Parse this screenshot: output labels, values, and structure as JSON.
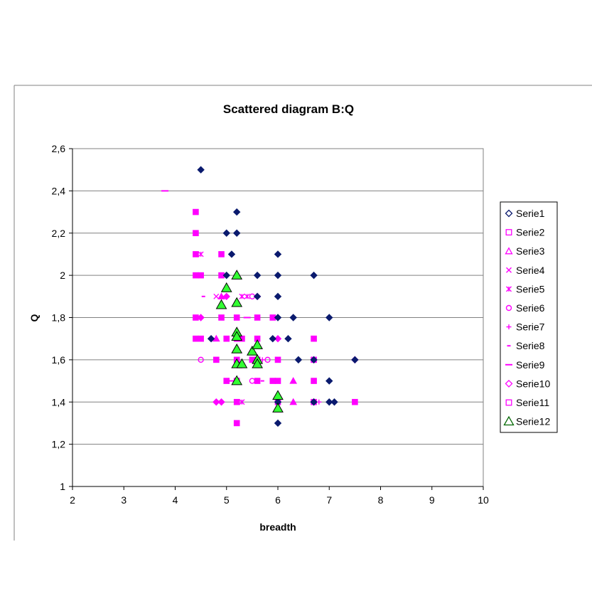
{
  "chart_data": {
    "type": "scatter",
    "title": "Scattered diagram B:Q",
    "xlabel": "breadth",
    "ylabel": "Q",
    "xlim": [
      2,
      10
    ],
    "ylim": [
      1,
      2.6
    ],
    "x_ticks": [
      "2",
      "3",
      "4",
      "5",
      "6",
      "7",
      "8",
      "9",
      "10"
    ],
    "y_ticks": [
      "1",
      "1,2",
      "1,4",
      "1,6",
      "1,8",
      "2",
      "2,2",
      "2,4",
      "2,6"
    ],
    "grid": "horizontal",
    "legend_position": "right",
    "series": [
      {
        "name": "Serie1",
        "marker": "diamond-filled",
        "color": "#0a1a6e",
        "points": [
          [
            4.5,
            2.5
          ],
          [
            5.2,
            2.3
          ],
          [
            5.0,
            2.2
          ],
          [
            5.2,
            2.2
          ],
          [
            5.1,
            2.1
          ],
          [
            6.0,
            2.1
          ],
          [
            5.0,
            2.0
          ],
          [
            5.6,
            2.0
          ],
          [
            6.0,
            2.0
          ],
          [
            6.7,
            2.0
          ],
          [
            5.6,
            1.9
          ],
          [
            6.0,
            1.9
          ],
          [
            6.0,
            1.8
          ],
          [
            6.3,
            1.8
          ],
          [
            7.0,
            1.8
          ],
          [
            4.7,
            1.7
          ],
          [
            5.9,
            1.7
          ],
          [
            6.2,
            1.7
          ],
          [
            6.4,
            1.6
          ],
          [
            6.7,
            1.6
          ],
          [
            7.5,
            1.6
          ],
          [
            7.0,
            1.5
          ],
          [
            6.0,
            1.4
          ],
          [
            6.7,
            1.4
          ],
          [
            7.0,
            1.4
          ],
          [
            7.1,
            1.4
          ],
          [
            6.0,
            1.3
          ]
        ]
      },
      {
        "name": "Serie2",
        "marker": "square",
        "color": "#ff00ff",
        "points": [
          [
            4.4,
            2.3
          ],
          [
            4.4,
            2.2
          ],
          [
            4.4,
            2.1
          ],
          [
            4.9,
            2.1
          ],
          [
            4.4,
            2.0
          ],
          [
            4.5,
            2.0
          ],
          [
            4.9,
            2.0
          ],
          [
            4.4,
            1.8
          ],
          [
            4.9,
            1.8
          ],
          [
            5.2,
            1.8
          ],
          [
            5.6,
            1.8
          ],
          [
            5.9,
            1.8
          ],
          [
            4.5,
            1.7
          ],
          [
            5.0,
            1.7
          ],
          [
            5.2,
            1.7
          ],
          [
            5.6,
            1.7
          ],
          [
            6.7,
            1.7
          ],
          [
            4.8,
            1.6
          ],
          [
            5.2,
            1.6
          ],
          [
            5.6,
            1.6
          ],
          [
            6.0,
            1.6
          ],
          [
            6.7,
            1.6
          ],
          [
            5.0,
            1.5
          ],
          [
            5.2,
            1.5
          ],
          [
            5.6,
            1.5
          ],
          [
            5.9,
            1.5
          ],
          [
            6.0,
            1.5
          ],
          [
            6.7,
            1.5
          ],
          [
            5.2,
            1.4
          ],
          [
            6.0,
            1.4
          ],
          [
            6.7,
            1.4
          ],
          [
            7.5,
            1.4
          ],
          [
            5.2,
            1.3
          ]
        ]
      },
      {
        "name": "Serie3",
        "marker": "triangle",
        "color": "#ff00ff",
        "points": [
          [
            4.9,
            1.9
          ],
          [
            4.8,
            1.7
          ],
          [
            6.3,
            1.5
          ],
          [
            6.3,
            1.4
          ]
        ]
      },
      {
        "name": "Serie4",
        "marker": "x",
        "color": "#ff00ff",
        "points": [
          [
            4.8,
            1.9
          ],
          [
            5.3,
            1.9
          ]
        ]
      },
      {
        "name": "Serie5",
        "marker": "star",
        "color": "#ff00ff",
        "points": [
          [
            4.5,
            2.1
          ],
          [
            5.3,
            1.9
          ],
          [
            5.4,
            1.9
          ],
          [
            5.2,
            1.3
          ],
          [
            5.3,
            1.4
          ]
        ]
      },
      {
        "name": "Serie6",
        "marker": "circle",
        "color": "#ff00ff",
        "points": [
          [
            4.5,
            1.6
          ],
          [
            5.5,
            1.9
          ],
          [
            5.8,
            1.6
          ],
          [
            5.5,
            1.5
          ]
        ]
      },
      {
        "name": "Serie7",
        "marker": "plus",
        "color": "#ff00ff",
        "points": [
          [
            5.0,
            1.5
          ],
          [
            5.7,
            1.6
          ],
          [
            6.8,
            1.4
          ]
        ]
      },
      {
        "name": "Serie8",
        "marker": "short-dash",
        "color": "#ff00ff",
        "points": [
          [
            4.55,
            1.9
          ],
          [
            5.7,
            1.5
          ]
        ]
      },
      {
        "name": "Serie9",
        "marker": "long-dash",
        "color": "#ff00ff",
        "points": [
          [
            3.8,
            2.4
          ],
          [
            5.4,
            1.8
          ],
          [
            5.1,
            1.5
          ]
        ]
      },
      {
        "name": "Serie10",
        "marker": "diamond",
        "color": "#ff00ff",
        "points": [
          [
            4.5,
            1.8
          ],
          [
            5.0,
            1.9
          ],
          [
            4.8,
            1.4
          ],
          [
            4.9,
            1.4
          ],
          [
            6.0,
            1.7
          ],
          [
            7.5,
            1.6
          ],
          [
            6.7,
            1.4
          ],
          [
            5.6,
            1.9
          ]
        ]
      },
      {
        "name": "Serie11",
        "marker": "square",
        "color": "#ff00ff",
        "points": [
          [
            4.4,
            1.7
          ],
          [
            5.3,
            1.7
          ],
          [
            5.5,
            1.6
          ]
        ]
      },
      {
        "name": "Serie12",
        "marker": "triangle-filled",
        "color": "#33ff33",
        "points": [
          [
            5.2,
            2.0
          ],
          [
            5.0,
            1.94
          ],
          [
            4.9,
            1.86
          ],
          [
            5.2,
            1.87
          ],
          [
            5.2,
            1.73
          ],
          [
            5.2,
            1.71
          ],
          [
            5.2,
            1.65
          ],
          [
            5.5,
            1.64
          ],
          [
            5.6,
            1.67
          ],
          [
            5.2,
            1.58
          ],
          [
            5.3,
            1.58
          ],
          [
            5.6,
            1.6
          ],
          [
            5.6,
            1.58
          ],
          [
            5.2,
            1.5
          ],
          [
            6.0,
            1.43
          ],
          [
            6.0,
            1.37
          ]
        ]
      }
    ]
  }
}
